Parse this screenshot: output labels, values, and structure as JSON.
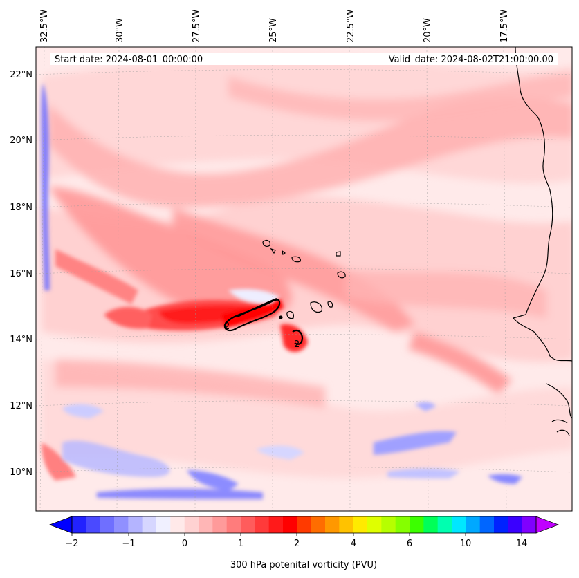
{
  "map": {
    "start_label": "Start date: 2024-08-01_00:00:00",
    "valid_label": "Valid_date: 2024-08-02T21:00:00.00",
    "lon_ticks": [
      "32.5°W",
      "30°W",
      "27.5°W",
      "25°W",
      "22.5°W",
      "20°W",
      "17.5°W"
    ],
    "lat_ticks": [
      "22°N",
      "20°N",
      "18°N",
      "16°N",
      "14°N",
      "12°N",
      "10°N"
    ],
    "contour_label": "2",
    "extent": {
      "lon_west": -32.5,
      "lon_east": -15.0,
      "lat_south": 8.9,
      "lat_north": 22.8
    }
  },
  "colorbar": {
    "title": "300 hPa potenital vorticity (PVU)",
    "tick_labels": [
      "−2",
      "−1",
      "0",
      "1",
      "2",
      "4",
      "6",
      "10",
      "14"
    ],
    "colors": [
      "#0000ff",
      "#2222ff",
      "#4a4aff",
      "#6f6fff",
      "#9090ff",
      "#b4b4ff",
      "#d6d6ff",
      "#f0f0ff",
      "#ffe9e9",
      "#ffd2d2",
      "#ffb6b6",
      "#ff9a9a",
      "#ff7c7c",
      "#ff5c5c",
      "#ff3a3a",
      "#ff1a1a",
      "#ff0000",
      "#ff3a00",
      "#ff6d00",
      "#ff9800",
      "#ffc200",
      "#ffea00",
      "#dfff00",
      "#b6ff00",
      "#85ff00",
      "#3cff00",
      "#00ff58",
      "#00ffb0",
      "#00e7ff",
      "#00a8ff",
      "#0066ff",
      "#0022ff",
      "#3a00ff",
      "#8000ff",
      "#c000ff"
    ]
  }
}
